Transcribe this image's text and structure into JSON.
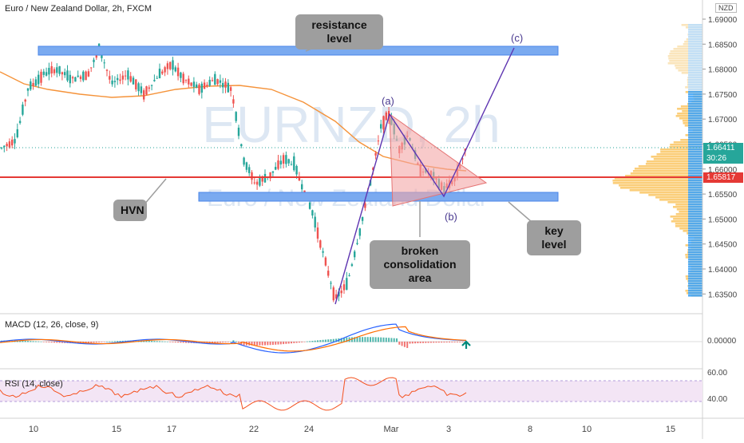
{
  "header": {
    "title": "Euro / New Zealand Dollar, 2h, FXCM",
    "currency": "NZD"
  },
  "watermark": {
    "symbol": "EURNZD, 2h",
    "name": "Euro / New Zealand Dollar"
  },
  "annotations": {
    "resistance": "resistance level",
    "hvn": "HVN",
    "key_level": "key level",
    "broken": "broken\nconsolidation area",
    "wave_a": "(a)",
    "wave_b": "(b)",
    "wave_c": "(c)"
  },
  "price_axis": {
    "ticks": [
      "1.69000",
      "1.68500",
      "1.68000",
      "1.67500",
      "1.67000",
      "1.66500",
      "1.66000",
      "1.65500",
      "1.65000",
      "1.64500",
      "1.64000",
      "1.63500"
    ],
    "last_price": "1.66411",
    "countdown": "30:26",
    "hline_price": "1.65817",
    "colors": {
      "last": "#26a69a",
      "hline": "#e53935"
    }
  },
  "time_axis": {
    "ticks": [
      "10",
      "15",
      "17",
      "22",
      "24",
      "Mar",
      "3",
      "8",
      "10",
      "15"
    ]
  },
  "macd": {
    "label": "MACD (12, 26, close, 9)",
    "zero": "0.00000"
  },
  "rsi": {
    "label": "RSI (14, close)",
    "ticks": [
      "60.00",
      "40.00"
    ]
  },
  "chart_data": {
    "type": "candlestick",
    "ylim": [
      1.632,
      1.691
    ],
    "levels": {
      "resistance_zone": [
        1.6826,
        1.6836
      ],
      "key_level_zone": [
        1.6542,
        1.6552
      ],
      "horizontal_line": 1.65817,
      "last_price": 1.66411
    },
    "waves": [
      {
        "label": "start",
        "price": 1.6332
      },
      {
        "label": "(a)",
        "price": 1.6712
      },
      {
        "label": "(b)",
        "price": 1.6555
      },
      {
        "label": "(c)",
        "price": 1.6833
      }
    ],
    "triangle": [
      1.6712,
      1.6522,
      1.6578
    ]
  }
}
